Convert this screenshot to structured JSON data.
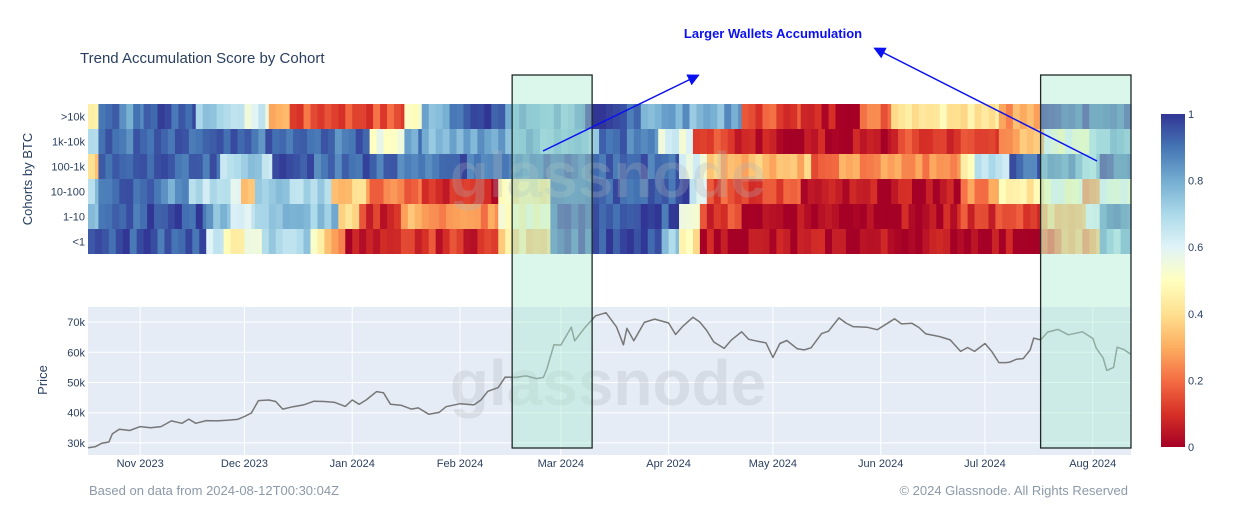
{
  "chart_data": {
    "type": "heatmap",
    "title": "Trend Accumulation Score by Cohort",
    "start_date": "2023-10-17",
    "end_date": "2024-08-12",
    "heatmap": {
      "ylabel": "Cohorts by BTC",
      "colorscale": [
        "#a50026",
        "#d73027",
        "#f46d43",
        "#fdae61",
        "#fee090",
        "#ffffbf",
        "#e0f3f8",
        "#abd9e9",
        "#74add1",
        "#4575b4",
        "#313695"
      ],
      "zrange": [
        0,
        1
      ],
      "colorbar_ticks": [
        "0",
        "0.2",
        "0.4",
        "0.6",
        "0.8",
        "1"
      ],
      "segments_note": "each row: [day offset from start_date, score] until next segment",
      "rows": [
        {
          "name": ">10k",
          "segments": [
            [
              0,
              0.45
            ],
            [
              3,
              0.95
            ],
            [
              9,
              0.85
            ],
            [
              16,
              0.95
            ],
            [
              31,
              0.75
            ],
            [
              41,
              0.6
            ],
            [
              52,
              0.3
            ],
            [
              58,
              0.15
            ],
            [
              91,
              0.5
            ],
            [
              96,
              0.8
            ],
            [
              104,
              0.95
            ],
            [
              120,
              0.8
            ],
            [
              143,
              0.95
            ],
            [
              159,
              0.8
            ],
            [
              188,
              0.15
            ],
            [
              205,
              0.05
            ],
            [
              222,
              0.2
            ],
            [
              231,
              0.45
            ],
            [
              262,
              0.3
            ],
            [
              274,
              0.95
            ]
          ]
        },
        {
          "name": "1k-10k",
          "segments": [
            [
              0,
              0.7
            ],
            [
              3,
              0.9
            ],
            [
              81,
              0.55
            ],
            [
              91,
              0.85
            ],
            [
              96,
              0.8
            ],
            [
              147,
              0.9
            ],
            [
              164,
              0.6
            ],
            [
              174,
              0.15
            ],
            [
              186,
              0.03
            ],
            [
              231,
              0.12
            ],
            [
              262,
              0.3
            ],
            [
              275,
              0.55
            ],
            [
              288,
              0.75
            ]
          ]
        },
        {
          "name": "100-1k",
          "segments": [
            [
              0,
              0.4
            ],
            [
              3,
              0.95
            ],
            [
              38,
              0.7
            ],
            [
              53,
              0.92
            ],
            [
              170,
              0.6
            ],
            [
              178,
              0.35
            ],
            [
              208,
              0.15
            ],
            [
              214,
              0.25
            ],
            [
              251,
              0.5
            ],
            [
              255,
              0.7
            ],
            [
              265,
              0.9
            ],
            [
              274,
              0.85
            ],
            [
              286,
              0.75
            ],
            [
              291,
              0.95
            ]
          ]
        },
        {
          "name": "10-100",
          "segments": [
            [
              0,
              0.7
            ],
            [
              3,
              0.95
            ],
            [
              21,
              0.85
            ],
            [
              29,
              0.65
            ],
            [
              44,
              0.35
            ],
            [
              48,
              0.7
            ],
            [
              70,
              0.35
            ],
            [
              81,
              0.2
            ],
            [
              96,
              0.08
            ],
            [
              118,
              0.45
            ],
            [
              133,
              0.95
            ],
            [
              173,
              0.6
            ],
            [
              178,
              0.15
            ],
            [
              205,
              0.03
            ],
            [
              251,
              0.25
            ],
            [
              262,
              0.45
            ],
            [
              275,
              0.55
            ],
            [
              286,
              0.3
            ],
            [
              291,
              0.55
            ]
          ]
        },
        {
          "name": "1-10",
          "segments": [
            [
              0,
              0.8
            ],
            [
              3,
              0.95
            ],
            [
              34,
              0.8
            ],
            [
              41,
              0.6
            ],
            [
              48,
              0.75
            ],
            [
              72,
              0.35
            ],
            [
              78,
              0.1
            ],
            [
              90,
              0.3
            ],
            [
              101,
              0.25
            ],
            [
              118,
              0.5
            ],
            [
              133,
              0.95
            ],
            [
              170,
              0.6
            ],
            [
              176,
              0.12
            ],
            [
              188,
              0.03
            ],
            [
              251,
              0.12
            ],
            [
              274,
              0.35
            ],
            [
              287,
              0.55
            ],
            [
              291,
              0.9
            ]
          ]
        },
        {
          "name": "<1",
          "segments": [
            [
              0,
              0.95
            ],
            [
              34,
              0.6
            ],
            [
              39,
              0.5
            ],
            [
              50,
              0.7
            ],
            [
              64,
              0.5
            ],
            [
              68,
              0.3
            ],
            [
              74,
              0.03
            ],
            [
              90,
              0.1
            ],
            [
              118,
              0.4
            ],
            [
              133,
              0.95
            ],
            [
              165,
              0.7
            ],
            [
              170,
              0.45
            ],
            [
              176,
              0.03
            ],
            [
              274,
              0.2
            ],
            [
              280,
              0.3
            ],
            [
              291,
              0.75
            ]
          ]
        }
      ]
    },
    "price": {
      "ylabel": "Price",
      "ylim": [
        26000,
        75000
      ],
      "yticks": [
        {
          "v": 30000,
          "label": "30k"
        },
        {
          "v": 40000,
          "label": "40k"
        },
        {
          "v": 50000,
          "label": "50k"
        },
        {
          "v": 60000,
          "label": "60k"
        },
        {
          "v": 70000,
          "label": "70k"
        }
      ],
      "series": [
        [
          "2023-10-17",
          28400
        ],
        [
          "2023-10-19",
          28700
        ],
        [
          "2023-10-21",
          29900
        ],
        [
          "2023-10-23",
          30300
        ],
        [
          "2023-10-24",
          33000
        ],
        [
          "2023-10-26",
          34500
        ],
        [
          "2023-10-29",
          34100
        ],
        [
          "2023-11-01",
          35400
        ],
        [
          "2023-11-04",
          35000
        ],
        [
          "2023-11-07",
          35400
        ],
        [
          "2023-11-10",
          37300
        ],
        [
          "2023-11-13",
          36500
        ],
        [
          "2023-11-15",
          37900
        ],
        [
          "2023-11-17",
          36500
        ],
        [
          "2023-11-20",
          37400
        ],
        [
          "2023-11-23",
          37300
        ],
        [
          "2023-11-26",
          37500
        ],
        [
          "2023-11-29",
          37800
        ],
        [
          "2023-12-01",
          38700
        ],
        [
          "2023-12-03",
          39900
        ],
        [
          "2023-12-05",
          44000
        ],
        [
          "2023-12-08",
          44200
        ],
        [
          "2023-12-10",
          43700
        ],
        [
          "2023-12-12",
          41200
        ],
        [
          "2023-12-15",
          42000
        ],
        [
          "2023-12-18",
          42600
        ],
        [
          "2023-12-21",
          43800
        ],
        [
          "2023-12-24",
          43700
        ],
        [
          "2023-12-27",
          43400
        ],
        [
          "2023-12-30",
          42100
        ],
        [
          "2024-01-01",
          44200
        ],
        [
          "2024-01-03",
          42800
        ],
        [
          "2024-01-05",
          44200
        ],
        [
          "2024-01-08",
          47000
        ],
        [
          "2024-01-10",
          46600
        ],
        [
          "2024-01-12",
          42800
        ],
        [
          "2024-01-15",
          42500
        ],
        [
          "2024-01-18",
          41200
        ],
        [
          "2024-01-20",
          41600
        ],
        [
          "2024-01-23",
          39500
        ],
        [
          "2024-01-26",
          40100
        ],
        [
          "2024-01-28",
          42000
        ],
        [
          "2024-02-01",
          43000
        ],
        [
          "2024-02-05",
          42600
        ],
        [
          "2024-02-07",
          44200
        ],
        [
          "2024-02-09",
          47100
        ],
        [
          "2024-02-12",
          48300
        ],
        [
          "2024-02-14",
          51800
        ],
        [
          "2024-02-17",
          51700
        ],
        [
          "2024-02-20",
          52200
        ],
        [
          "2024-02-23",
          51300
        ],
        [
          "2024-02-25",
          51700
        ],
        [
          "2024-02-26",
          54500
        ],
        [
          "2024-02-28",
          62500
        ],
        [
          "2024-03-01",
          62400
        ],
        [
          "2024-03-04",
          68300
        ],
        [
          "2024-03-05",
          63800
        ],
        [
          "2024-03-08",
          68300
        ],
        [
          "2024-03-11",
          72100
        ],
        [
          "2024-03-14",
          73100
        ],
        [
          "2024-03-17",
          68400
        ],
        [
          "2024-03-19",
          62500
        ],
        [
          "2024-03-20",
          67900
        ],
        [
          "2024-03-22",
          63800
        ],
        [
          "2024-03-25",
          69900
        ],
        [
          "2024-03-28",
          71000
        ],
        [
          "2024-04-01",
          69700
        ],
        [
          "2024-04-03",
          65900
        ],
        [
          "2024-04-05",
          68500
        ],
        [
          "2024-04-08",
          71600
        ],
        [
          "2024-04-10",
          70000
        ],
        [
          "2024-04-12",
          67200
        ],
        [
          "2024-04-14",
          63400
        ],
        [
          "2024-04-17",
          61300
        ],
        [
          "2024-04-19",
          64000
        ],
        [
          "2024-04-22",
          66800
        ],
        [
          "2024-04-24",
          64300
        ],
        [
          "2024-04-26",
          63800
        ],
        [
          "2024-04-29",
          63100
        ],
        [
          "2024-05-01",
          58300
        ],
        [
          "2024-05-03",
          62900
        ],
        [
          "2024-05-05",
          63900
        ],
        [
          "2024-05-08",
          61200
        ],
        [
          "2024-05-10",
          60800
        ],
        [
          "2024-05-12",
          61500
        ],
        [
          "2024-05-15",
          66200
        ],
        [
          "2024-05-17",
          67000
        ],
        [
          "2024-05-20",
          71400
        ],
        [
          "2024-05-22",
          69700
        ],
        [
          "2024-05-24",
          68500
        ],
        [
          "2024-05-28",
          68300
        ],
        [
          "2024-05-31",
          67500
        ],
        [
          "2024-06-05",
          71100
        ],
        [
          "2024-06-07",
          69400
        ],
        [
          "2024-06-10",
          69600
        ],
        [
          "2024-06-12",
          68200
        ],
        [
          "2024-06-14",
          66100
        ],
        [
          "2024-06-18",
          65200
        ],
        [
          "2024-06-21",
          64100
        ],
        [
          "2024-06-24",
          60300
        ],
        [
          "2024-06-26",
          61600
        ],
        [
          "2024-06-28",
          60300
        ],
        [
          "2024-07-01",
          62900
        ],
        [
          "2024-07-03",
          60200
        ],
        [
          "2024-07-05",
          56600
        ],
        [
          "2024-07-07",
          56600
        ],
        [
          "2024-07-08",
          56700
        ],
        [
          "2024-07-10",
          57700
        ],
        [
          "2024-07-12",
          57900
        ],
        [
          "2024-07-14",
          60800
        ],
        [
          "2024-07-15",
          64700
        ],
        [
          "2024-07-17",
          64100
        ],
        [
          "2024-07-19",
          66700
        ],
        [
          "2024-07-22",
          67600
        ],
        [
          "2024-07-25",
          65800
        ],
        [
          "2024-07-29",
          66800
        ],
        [
          "2024-08-01",
          64600
        ],
        [
          "2024-08-02",
          61400
        ],
        [
          "2024-08-04",
          58100
        ],
        [
          "2024-08-05",
          54000
        ],
        [
          "2024-08-07",
          55000
        ],
        [
          "2024-08-08",
          61700
        ],
        [
          "2024-08-10",
          60900
        ],
        [
          "2024-08-12",
          59300
        ]
      ]
    },
    "xticks": [
      {
        "date": "2023-11-01",
        "label": "Nov 2023"
      },
      {
        "date": "2023-12-01",
        "label": "Dec 2023"
      },
      {
        "date": "2024-01-01",
        "label": "Jan 2024"
      },
      {
        "date": "2024-02-01",
        "label": "Feb 2024"
      },
      {
        "date": "2024-03-01",
        "label": "Mar 2024"
      },
      {
        "date": "2024-04-01",
        "label": "Apr 2024"
      },
      {
        "date": "2024-05-01",
        "label": "May 2024"
      },
      {
        "date": "2024-06-01",
        "label": "Jun 2024"
      },
      {
        "date": "2024-07-01",
        "label": "Jul 2024"
      },
      {
        "date": "2024-08-01",
        "label": "Aug 2024"
      }
    ],
    "highlights": [
      {
        "start": "2024-02-16",
        "end": "2024-03-10"
      },
      {
        "start": "2024-07-17",
        "end": "2024-08-12"
      }
    ],
    "annotation": "Larger Wallets Accumulation",
    "watermark": "glassnode"
  },
  "footer": {
    "source": "Based on data from 2024-08-12T00:30:04Z",
    "copyright": "© 2024 Glassnode. All Rights Reserved"
  },
  "colors": {
    "price_line": "#777777",
    "annotation": "#0a10f0",
    "plot_bg": "#e5ecf6"
  }
}
